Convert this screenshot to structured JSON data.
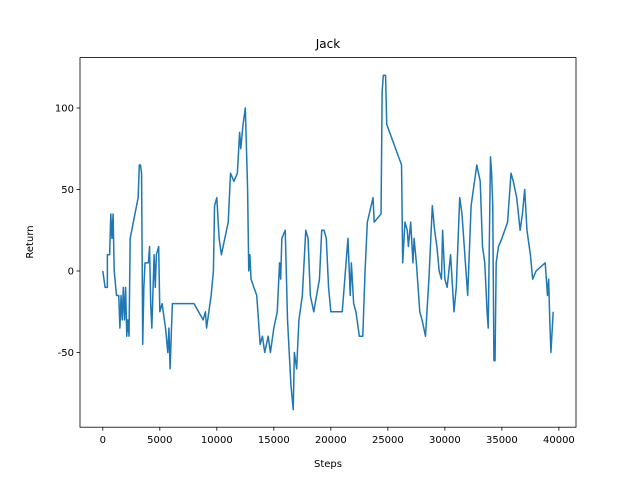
{
  "chart_data": {
    "type": "line",
    "title": "Jack",
    "x_label": "Steps",
    "y_label": "Return",
    "color": "#1f77b4",
    "x": [
      0,
      200,
      400,
      400,
      600,
      700,
      800,
      900,
      1000,
      1200,
      1400,
      1500,
      1600,
      1700,
      1800,
      1900,
      2000,
      2100,
      2200,
      2300,
      2400,
      3100,
      3200,
      3300,
      3400,
      3500,
      3600,
      3700,
      4000,
      4100,
      4200,
      4300,
      4500,
      4600,
      4700,
      4900,
      5000,
      5200,
      5500,
      5700,
      5800,
      5900,
      6100,
      8000,
      8800,
      9000,
      9100,
      9500,
      9700,
      9800,
      10000,
      10200,
      10400,
      11000,
      11200,
      11500,
      11800,
      12000,
      12100,
      12300,
      12500,
      12700,
      12800,
      12900,
      13000,
      13500,
      13800,
      14000,
      14200,
      14500,
      14700,
      15000,
      15300,
      15500,
      15600,
      15700,
      16000,
      16200,
      16500,
      16700,
      16800,
      17000,
      17200,
      17500,
      17800,
      18000,
      18200,
      18500,
      19000,
      19200,
      19400,
      19600,
      19800,
      20000,
      21000,
      21500,
      21700,
      21800,
      22000,
      22200,
      22500,
      22800,
      23000,
      23200,
      23700,
      23800,
      24400,
      24500,
      24600,
      24800,
      24900,
      26200,
      26300,
      26500,
      26700,
      26800,
      27000,
      27200,
      27300,
      27500,
      27800,
      28000,
      28300,
      28600,
      28900,
      29100,
      29300,
      29500,
      29700,
      29800,
      30000,
      30200,
      30500,
      30800,
      31000,
      31300,
      31500,
      31700,
      31900,
      32000,
      32300,
      32800,
      33100,
      33300,
      33500,
      33700,
      33800,
      34000,
      34100,
      34200,
      34300,
      34400,
      34500,
      34700,
      35000,
      35500,
      35800,
      36000,
      36300,
      36600,
      36800,
      37000,
      37200,
      37500,
      37700,
      38000,
      38800,
      39000,
      39100,
      39200,
      39300,
      39500
    ],
    "values": [
      0,
      -10,
      -10,
      10,
      10,
      35,
      20,
      35,
      0,
      -15,
      -15,
      -35,
      -15,
      -30,
      -10,
      -30,
      -10,
      -40,
      -30,
      -40,
      20,
      45,
      65,
      65,
      60,
      -45,
      -10,
      5,
      5,
      15,
      -20,
      -35,
      10,
      -10,
      10,
      15,
      -25,
      -20,
      -35,
      -50,
      -35,
      -60,
      -20,
      -20,
      -30,
      -25,
      -35,
      -15,
      0,
      40,
      45,
      20,
      10,
      30,
      60,
      55,
      60,
      85,
      75,
      90,
      100,
      50,
      0,
      10,
      -5,
      -15,
      -45,
      -40,
      -50,
      -40,
      -50,
      -35,
      -25,
      5,
      -5,
      20,
      25,
      -30,
      -70,
      -85,
      -50,
      -60,
      -30,
      -15,
      25,
      20,
      -15,
      -25,
      -5,
      25,
      25,
      20,
      -10,
      -25,
      -25,
      20,
      -15,
      5,
      -20,
      -25,
      -40,
      -40,
      0,
      30,
      45,
      30,
      35,
      110,
      120,
      120,
      90,
      65,
      5,
      30,
      25,
      15,
      30,
      5,
      20,
      5,
      -25,
      -30,
      -40,
      -5,
      40,
      25,
      15,
      0,
      -5,
      25,
      -5,
      -10,
      10,
      -25,
      -10,
      45,
      35,
      15,
      -5,
      -15,
      40,
      65,
      55,
      15,
      5,
      -25,
      -35,
      70,
      60,
      40,
      -55,
      -55,
      5,
      15,
      20,
      30,
      60,
      55,
      45,
      25,
      35,
      50,
      25,
      10,
      -5,
      0,
      5,
      -15,
      -5,
      -30,
      -50,
      -25
    ],
    "xlim": [
      -2000,
      41500
    ],
    "ylim": [
      -95.8,
      130.9
    ],
    "xticks": [
      0,
      5000,
      10000,
      15000,
      20000,
      25000,
      30000,
      35000,
      40000
    ],
    "yticks": [
      -50,
      0,
      50,
      100
    ]
  }
}
